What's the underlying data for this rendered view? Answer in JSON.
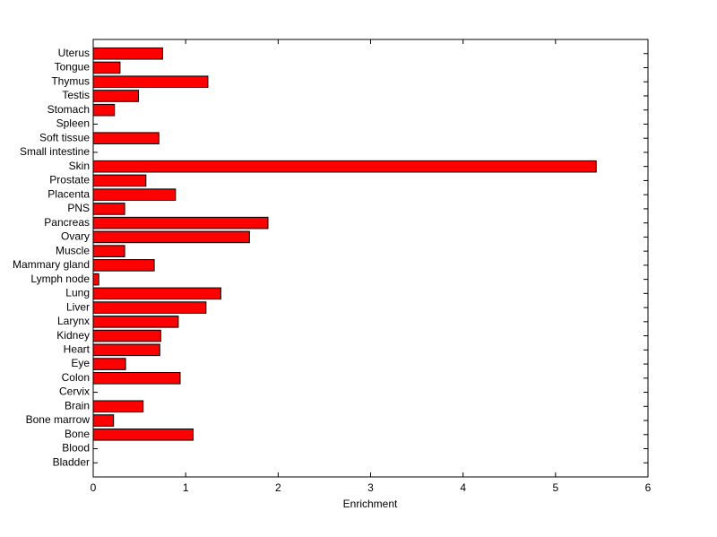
{
  "chart_data": {
    "type": "barh",
    "xlabel": "Enrichment",
    "categories": [
      "Uterus",
      "Tongue",
      "Thymus",
      "Testis",
      "Stomach",
      "Spleen",
      "Soft tissue",
      "Small intestine",
      "Skin",
      "Prostate",
      "Placenta",
      "PNS",
      "Pancreas",
      "Ovary",
      "Muscle",
      "Mammary gland",
      "Lymph node",
      "Lung",
      "Liver",
      "Larynx",
      "Kidney",
      "Heart",
      "Eye",
      "Colon",
      "Cervix",
      "Brain",
      "Bone marrow",
      "Bone",
      "Blood",
      "Bladder"
    ],
    "values": [
      0.75,
      0.29,
      1.24,
      0.49,
      0.23,
      0,
      0.71,
      0,
      5.44,
      0.57,
      0.89,
      0.34,
      1.89,
      1.69,
      0.34,
      0.66,
      0.06,
      1.38,
      1.22,
      0.92,
      0.73,
      0.72,
      0.35,
      0.94,
      0,
      0.54,
      0.22,
      1.08,
      0,
      0
    ],
    "color": "#ff0000",
    "xlim": [
      0,
      6
    ],
    "xticks": [
      0,
      1,
      2,
      3,
      4,
      5,
      6
    ]
  }
}
